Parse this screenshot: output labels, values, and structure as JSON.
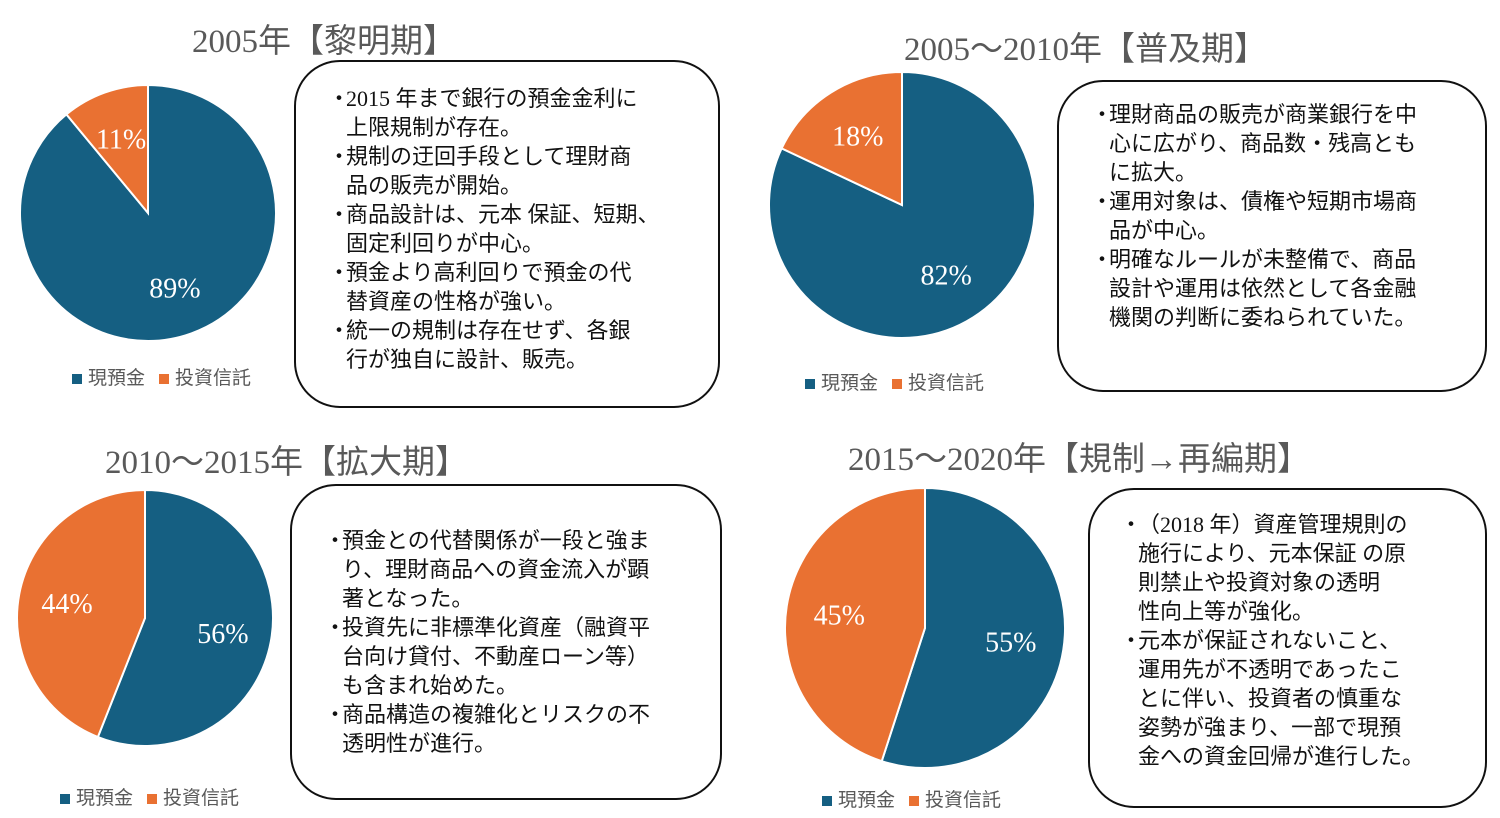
{
  "colors": {
    "cash": "#155F82",
    "trust": "#E97132"
  },
  "legend": {
    "cash": "現預金",
    "trust": "投資信託"
  },
  "chart_data": [
    {
      "type": "pie",
      "title": "2005年【黎明期】",
      "categories": [
        "現預金",
        "投資信託"
      ],
      "values": [
        89,
        11
      ],
      "labels": [
        "89%",
        "11%"
      ],
      "notes": [
        [
          "2015 年まで銀行の預金金利に",
          "上限規制が存在。"
        ],
        [
          "規制の迂回手段として理財商",
          "品の販売が開始。"
        ],
        [
          "商品設計は、元本 保証、短期、",
          "固定利回りが中心。"
        ],
        [
          "預金より高利回りで預金の代",
          "替資産の性格が強い。"
        ],
        [
          "統一の規制は存在せず、各銀",
          "行が独自に設計、販売。"
        ]
      ]
    },
    {
      "type": "pie",
      "title": "2005～2010年【普及期】",
      "categories": [
        "現預金",
        "投資信託"
      ],
      "values": [
        82,
        18
      ],
      "labels": [
        "82%",
        "18%"
      ],
      "notes": [
        [
          "理財商品の販売が商業銀行を中",
          "心に広がり、商品数・残高とも",
          "に拡大。"
        ],
        [
          "運用対象は、債権や短期市場商",
          "品が中心。"
        ],
        [
          "明確なルールが未整備で、商品",
          "設計や運用は依然として各金融",
          "機関の判断に委ねられていた。"
        ]
      ]
    },
    {
      "type": "pie",
      "title": "2010～2015年【拡大期】",
      "categories": [
        "現預金",
        "投資信託"
      ],
      "values": [
        56,
        44
      ],
      "labels": [
        "56%",
        "44%"
      ],
      "notes": [
        [
          "預金との代替関係が一段と強ま",
          "り、理財商品への資金流入が顕",
          "著となった。"
        ],
        [
          "投資先に非標準化資産（融資平",
          "台向け貸付、不動産ローン等）",
          "も含まれ始めた。"
        ],
        [
          "商品構造の複雑化とリスクの不",
          "透明性が進行。"
        ]
      ]
    },
    {
      "type": "pie",
      "title": "2015～2020年【規制→再編期】",
      "categories": [
        "現預金",
        "投資信託"
      ],
      "values": [
        55,
        45
      ],
      "labels": [
        "55%",
        "45%"
      ],
      "notes": [
        [
          "（2018 年）資産管理規則の",
          "施行により、元本保証 の原",
          "則禁止や投資対象の透明",
          "性向上等が強化。"
        ],
        [
          "元本が保証されないこと、",
          "運用先が不透明であったこ",
          "とに伴い、投資者の慎重な",
          "姿勢が強まり、一部で現預",
          "金への資金回帰が進行した。"
        ]
      ]
    }
  ],
  "bullet_mark": "・"
}
